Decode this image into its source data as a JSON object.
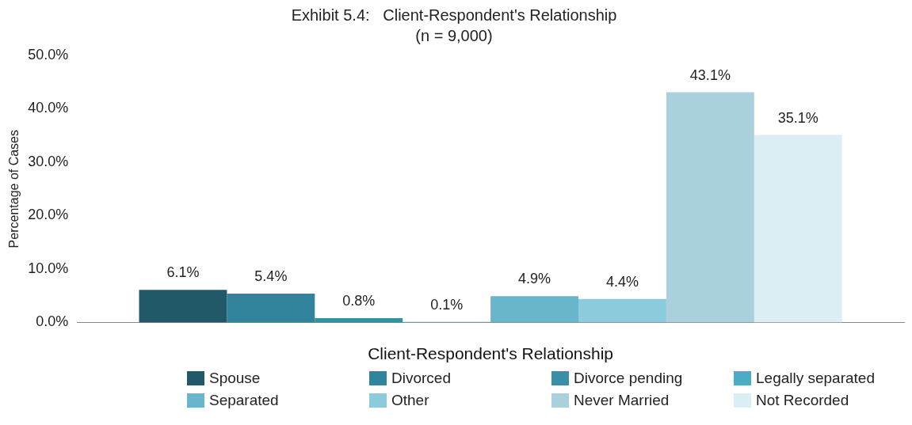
{
  "chart_data": {
    "type": "bar",
    "title": "Exhibit 5.4:   Client-Respondent's Relationship",
    "subtitle": "(n = 9,000)",
    "xlabel": "Client-Respondent's Relationship",
    "ylabel": "Percentage of Cases",
    "categories": [
      null
    ],
    "series": [
      {
        "name": "Spouse",
        "color": "#215968",
        "values": [
          6.1
        ],
        "value_labels": [
          "6.1%"
        ]
      },
      {
        "name": "Divorced",
        "color": "#31849b",
        "values": [
          5.4
        ],
        "value_labels": [
          "5.4%"
        ]
      },
      {
        "name": "Divorce pending",
        "color": "#3a8ea5",
        "values": [
          0.8
        ],
        "value_labels": [
          "0.8%"
        ]
      },
      {
        "name": "Legally separated",
        "color": "#4bacc6",
        "values": [
          0.1
        ],
        "value_labels": [
          "0.1%"
        ]
      },
      {
        "name": "Separated",
        "color": "#69b5cc",
        "values": [
          4.9
        ],
        "value_labels": [
          "4.9%"
        ]
      },
      {
        "name": "Other",
        "color": "#8ccbdc",
        "values": [
          4.4
        ],
        "value_labels": [
          "4.4%"
        ]
      },
      {
        "name": "Never Married",
        "color": "#a9d0dc",
        "values": [
          43.1
        ],
        "value_labels": [
          "43.1%"
        ]
      },
      {
        "name": "Not Recorded",
        "color": "#daeef3",
        "values": [
          35.1
        ],
        "value_labels": [
          "35.1%"
        ]
      }
    ],
    "ylim": [
      0,
      50
    ],
    "yticks": [
      {
        "value": 0,
        "label": "0.0%"
      },
      {
        "value": 10,
        "label": "10.0%"
      },
      {
        "value": 20,
        "label": "20.0%"
      },
      {
        "value": 30,
        "label": "30.0%"
      },
      {
        "value": 40,
        "label": "40.0%"
      },
      {
        "value": 50,
        "label": "50.0%"
      }
    ],
    "grid": false,
    "legend": "bottom"
  }
}
